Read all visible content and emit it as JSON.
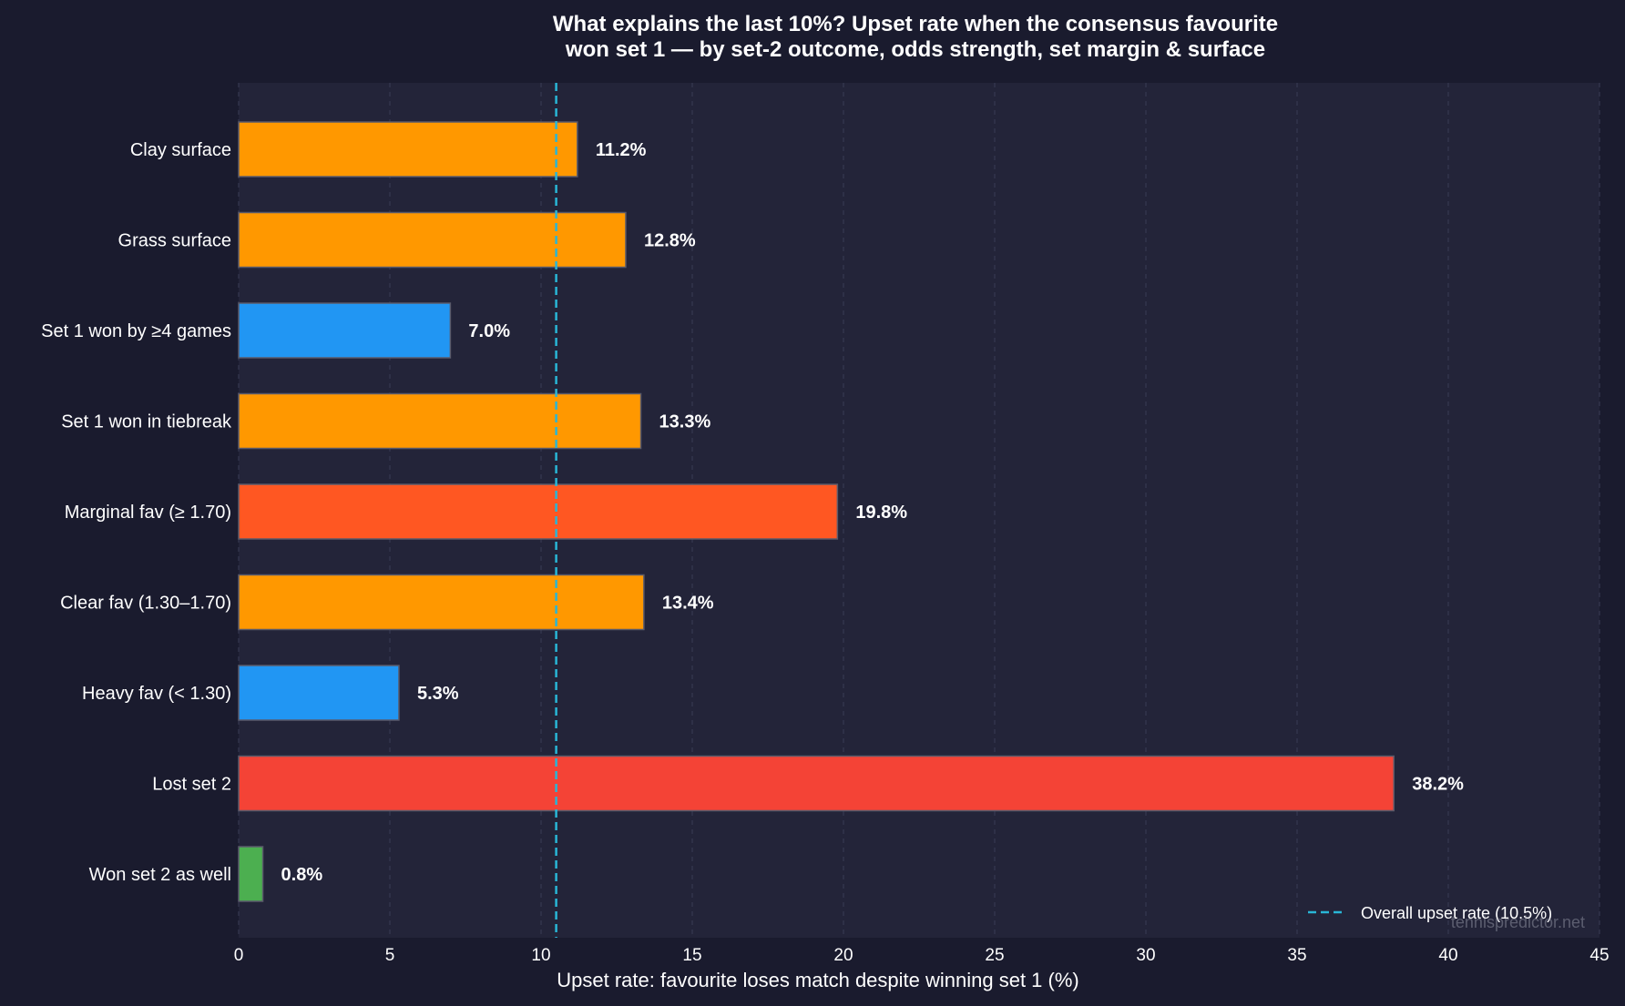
{
  "chart_data": {
    "type": "bar",
    "orientation": "horizontal",
    "title_lines": [
      "What explains the last 10%? Upset rate when the consensus favourite",
      "won set 1 — by set-2 outcome, odds strength, set margin & surface"
    ],
    "xlabel": "Upset rate: favourite loses match despite winning set 1 (%)",
    "ylabel": "",
    "xlim": [
      0,
      45
    ],
    "xticks": [
      0,
      5,
      10,
      15,
      20,
      25,
      30,
      35,
      40,
      45
    ],
    "grid": "x-dashed",
    "categories": [
      "Clay surface",
      "Grass surface",
      "Set 1 won by ≥4 games",
      "Set 1 won in tiebreak",
      "Marginal fav (≥ 1.70)",
      "Clear fav (1.30–1.70)",
      "Heavy fav (< 1.30)",
      "Lost set 2",
      "Won set 2 as well"
    ],
    "values": [
      11.2,
      12.8,
      7.0,
      13.3,
      19.8,
      13.4,
      5.3,
      38.2,
      0.8
    ],
    "value_labels": [
      "11.2%",
      "12.8%",
      "7.0%",
      "13.3%",
      "19.8%",
      "13.4%",
      "5.3%",
      "38.2%",
      "0.8%"
    ],
    "bar_colors": [
      "#ff9800",
      "#ff9800",
      "#2196f3",
      "#ff9800",
      "#ff5722",
      "#ff9800",
      "#2196f3",
      "#f44336",
      "#4caf50"
    ],
    "reference_line": {
      "value": 10.5,
      "label": "Overall upset rate (10.5%)",
      "color": "#29b6d6",
      "style": "dashed"
    },
    "legend_position": "bottom-right",
    "watermark": "tennispredictor.net"
  },
  "colors": {
    "background": "#1a1b2e",
    "plot_background": "#232439",
    "grid": "#3a3c55",
    "bar_edge": "#5a5a6a"
  }
}
